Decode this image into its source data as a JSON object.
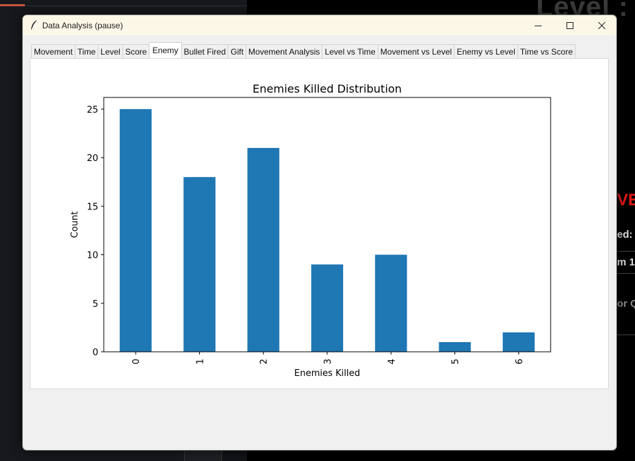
{
  "background": {
    "level_text": "Level :",
    "side_labels": [
      "VEI",
      "ed: (",
      "m 1",
      "or Q"
    ]
  },
  "window": {
    "title": "Data Analysis (pause)",
    "controls": {
      "minimize": "minimize-icon",
      "maximize": "maximize-icon",
      "close": "close-icon"
    }
  },
  "tabs": [
    {
      "label": "Movement"
    },
    {
      "label": "Time"
    },
    {
      "label": "Level"
    },
    {
      "label": "Score"
    },
    {
      "label": "Enemy",
      "active": true
    },
    {
      "label": "Bullet Fired"
    },
    {
      "label": "Gift"
    },
    {
      "label": "Movement Analysis"
    },
    {
      "label": "Level vs Time"
    },
    {
      "label": "Movement vs Level"
    },
    {
      "label": "Enemy vs Level"
    },
    {
      "label": "Time vs Score"
    }
  ],
  "colors": {
    "bar": "#1f77b4",
    "window_title_bg": "#fdf7e8",
    "red_text": "#e01818"
  },
  "chart_data": {
    "type": "bar",
    "title": "Enemies Killed Distribution",
    "xlabel": "Enemies Killed",
    "ylabel": "Count",
    "categories": [
      "0",
      "1",
      "2",
      "3",
      "4",
      "5",
      "6"
    ],
    "values": [
      25,
      18,
      21,
      9,
      10,
      1,
      2
    ],
    "ylim": [
      0,
      26.2
    ],
    "yticks": [
      0,
      5,
      10,
      15,
      20,
      25
    ],
    "xtick_rotation": "vertical",
    "grid": false,
    "legend": "none"
  }
}
